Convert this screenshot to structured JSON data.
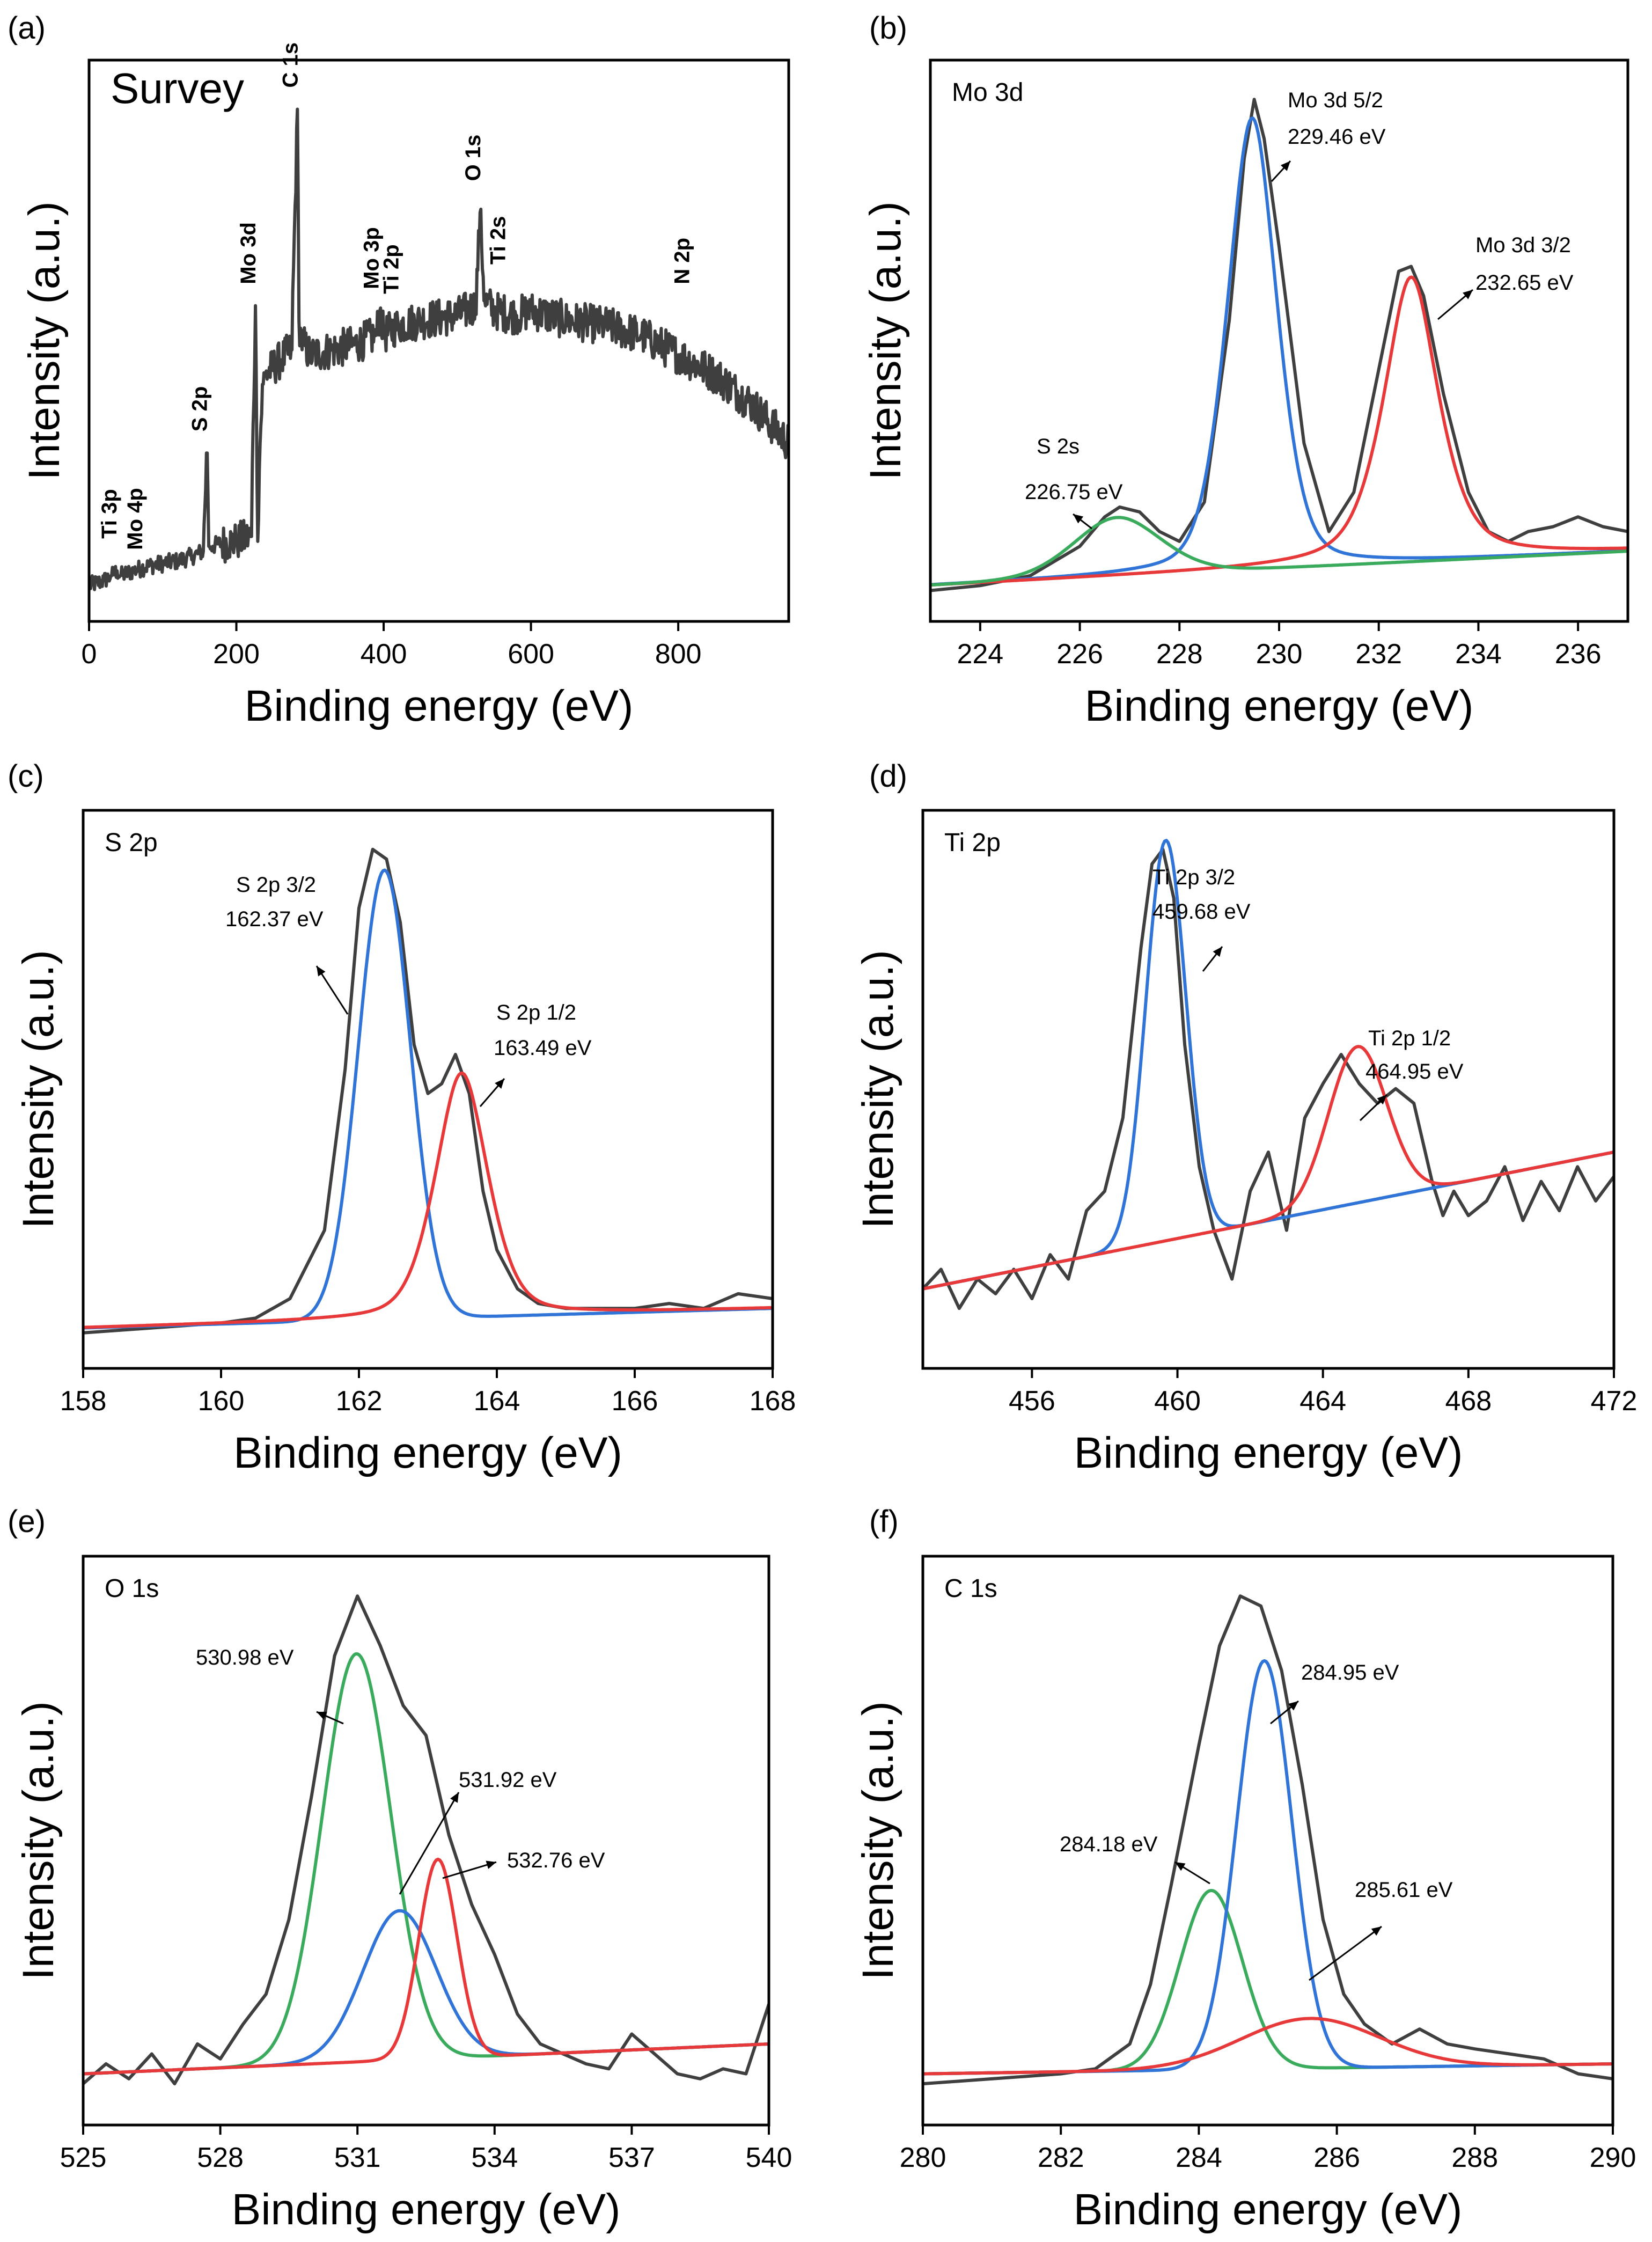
{
  "colors": {
    "total": "#3f3f3f",
    "red": "#e8393a",
    "blue": "#2f74d6",
    "green": "#3aab5c",
    "axis": "#000000"
  },
  "chart_data": [
    {
      "panel": "(a)",
      "type": "line",
      "title": "Survey",
      "xlabel": "Binding energy (eV)",
      "ylabel": "Intensity (a.u.)",
      "xlim": [
        0,
        950
      ],
      "ylim": [
        0,
        100
      ],
      "xticks": [
        0,
        200,
        400,
        600,
        800
      ],
      "xtick_labels": [
        "0",
        "200",
        "400",
        "600",
        "800"
      ],
      "series": [
        {
          "name": "total",
          "color": "#3f3f3f",
          "noise": 1.8,
          "x": [
            0,
            20,
            30,
            38,
            42,
            60,
            80,
            100,
            120,
            140,
            155,
            160,
            163,
            168,
            175,
            200,
            220,
            226,
            229,
            232,
            236,
            240,
            260,
            275,
            283,
            285,
            288,
            300,
            330,
            360,
            390,
            395,
            400,
            420,
            450,
            500,
            525,
            531,
            537,
            550,
            580,
            600,
            650,
            700,
            750,
            800,
            850,
            900,
            950
          ],
          "y": [
            1,
            2,
            3,
            4,
            3,
            4,
            5,
            5.5,
            6,
            7,
            8,
            28,
            9,
            9,
            9.5,
            10,
            11,
            58,
            10,
            30,
            42,
            44,
            47,
            49,
            98,
            55,
            51,
            48,
            49,
            50,
            52,
            57,
            52,
            54,
            55,
            56,
            58,
            77,
            59,
            57,
            56,
            57,
            55,
            54,
            52,
            48,
            44,
            38,
            30
          ]
        }
      ],
      "annotations": [
        {
          "text": "Ti 3p",
          "x": 37,
          "y": 4
        },
        {
          "text": "Mo 4p",
          "x": 64,
          "y": 5
        },
        {
          "text": "S 2p",
          "x": 160,
          "y": 28
        },
        {
          "text": "Mo 3d",
          "x": 226,
          "y": 58
        },
        {
          "text": "C 1s",
          "x": 283,
          "y": 98
        },
        {
          "text": "Mo 3p",
          "x": 393,
          "y": 57
        },
        {
          "text": "Ti 2p",
          "x": 420,
          "y": 56
        },
        {
          "text": "O 1s",
          "x": 531,
          "y": 79
        },
        {
          "text": "Ti 2s",
          "x": 565,
          "y": 62
        },
        {
          "text": "N 2p",
          "x": 815,
          "y": 58
        }
      ]
    },
    {
      "panel": "(b)",
      "type": "line",
      "title": "Mo 3d",
      "xlabel": "Binding energy (eV)",
      "ylabel": "Intensity (a.u.)",
      "xlim": [
        223,
        237
      ],
      "ylim": [
        0,
        100
      ],
      "xticks": [
        224,
        226,
        228,
        230,
        232,
        234,
        236
      ],
      "xtick_labels": [
        "224",
        "226",
        "228",
        "230",
        "232",
        "234",
        "236"
      ],
      "series": [
        {
          "name": "total",
          "color": "#3f3f3f",
          "noise": 0,
          "x": [
            223,
            224,
            225,
            225.5,
            226,
            226.5,
            226.8,
            227.2,
            227.6,
            228,
            228.5,
            229,
            229.3,
            229.5,
            229.7,
            230,
            230.5,
            231,
            231.5,
            232,
            232.4,
            232.65,
            232.9,
            233.3,
            233.8,
            234.2,
            234.6,
            235,
            235.5,
            236,
            236.5,
            237
          ],
          "y": [
            0,
            1,
            3,
            6,
            9,
            15,
            17,
            16,
            12,
            10,
            18,
            55,
            88,
            100,
            92,
            70,
            30,
            12,
            20,
            45,
            65,
            66,
            60,
            40,
            20,
            12,
            10,
            12,
            13,
            15,
            13,
            12
          ]
        },
        {
          "name": "Mo 3d 5/2",
          "color": "#2f74d6",
          "fn": "voigt",
          "center": 229.46,
          "amp": 92,
          "width": 0.52,
          "eta": 0.35,
          "bl": [
            1,
            8
          ]
        },
        {
          "name": "Mo 3d 3/2",
          "color": "#e8393a",
          "fn": "voigt",
          "center": 232.65,
          "amp": 58,
          "width": 0.6,
          "eta": 0.6,
          "bl": [
            1,
            8
          ]
        },
        {
          "name": "S 2s",
          "color": "#3aab5c",
          "fn": "voigt",
          "center": 226.75,
          "amp": 12,
          "width": 0.9,
          "eta": 0.2,
          "bl": [
            1,
            8
          ]
        }
      ],
      "annotations": [
        {
          "text": "Mo 3d 5/2",
          "text2": "229.46 eV",
          "x": 229.46,
          "y": 100
        },
        {
          "text": "Mo 3d 3/2",
          "text2": "232.65 eV",
          "x": 232.65,
          "y": 66
        },
        {
          "text": "S 2s",
          "text2": "226.75 eV",
          "x": 226.75,
          "y": 17
        }
      ]
    },
    {
      "panel": "(c)",
      "type": "line",
      "title": "S 2p",
      "xlabel": "Binding energy (eV)",
      "ylabel": "Intensity (a.u.)",
      "xlim": [
        158,
        168
      ],
      "ylim": [
        0,
        100
      ],
      "xticks": [
        158,
        160,
        162,
        164,
        166,
        168
      ],
      "xtick_labels": [
        "158",
        "160",
        "162",
        "164",
        "166",
        "168"
      ],
      "series": [
        {
          "name": "total",
          "color": "#3f3f3f",
          "noise": 0,
          "x": [
            158,
            159,
            160,
            160.5,
            161,
            161.5,
            161.8,
            162,
            162.2,
            162.4,
            162.6,
            162.8,
            163,
            163.2,
            163.4,
            163.6,
            163.8,
            164,
            164.3,
            164.6,
            165,
            165.5,
            166,
            166.5,
            167,
            167.5,
            168
          ],
          "y": [
            1,
            2,
            3,
            4,
            8,
            22,
            55,
            88,
            100,
            98,
            85,
            60,
            50,
            52,
            58,
            50,
            30,
            18,
            10,
            7,
            6,
            6,
            6,
            7,
            6,
            9,
            8
          ]
        },
        {
          "name": "S 2p 3/2",
          "color": "#2f74d6",
          "fn": "gauss",
          "center": 162.37,
          "amp": 92,
          "width": 0.38,
          "bl": [
            2,
            6
          ]
        },
        {
          "name": "S 2p 1/2",
          "color": "#e8393a",
          "fn": "voigt",
          "center": 163.49,
          "amp": 50,
          "width": 0.4,
          "eta": 0.4,
          "bl": [
            2,
            6
          ]
        }
      ],
      "annotations": [
        {
          "text": "S 2p 3/2",
          "text2": "162.37 eV",
          "x": 162.37,
          "y": 100
        },
        {
          "text": "S 2p 1/2",
          "text2": "163.49 eV",
          "x": 163.49,
          "y": 58
        }
      ]
    },
    {
      "panel": "(d)",
      "type": "line",
      "title": "Ti 2p",
      "xlabel": "Binding energy (eV)",
      "ylabel": "Intensity (a.u.)",
      "xlim": [
        453,
        472
      ],
      "ylim": [
        0,
        100
      ],
      "xticks": [
        456,
        460,
        464,
        468,
        472
      ],
      "xtick_labels": [
        "456",
        "460",
        "464",
        "468",
        "472"
      ],
      "series": [
        {
          "name": "total",
          "color": "#3f3f3f",
          "noise": 0,
          "x": [
            453,
            453.5,
            454,
            454.5,
            455,
            455.5,
            456,
            456.5,
            457,
            457.5,
            458,
            458.5,
            459,
            459.3,
            459.6,
            459.9,
            460.2,
            460.6,
            461,
            461.5,
            462,
            462.5,
            463,
            463.5,
            464,
            464.5,
            465,
            465.5,
            466,
            466.5,
            467,
            467.3,
            467.6,
            468,
            468.5,
            469,
            469.5,
            470,
            470.5,
            471,
            471.5,
            472
          ],
          "y": [
            10,
            14,
            6,
            12,
            9,
            14,
            8,
            17,
            12,
            26,
            30,
            45,
            80,
            97,
            100,
            90,
            60,
            35,
            22,
            12,
            30,
            38,
            22,
            45,
            52,
            58,
            52,
            48,
            51,
            48,
            32,
            25,
            30,
            25,
            28,
            35,
            24,
            32,
            26,
            35,
            28,
            33
          ]
        },
        {
          "name": "Ti 2p 3/2",
          "color": "#2f74d6",
          "fn": "gauss",
          "center": 459.68,
          "amp": 82,
          "width": 0.55,
          "bl": [
            10,
            38
          ]
        },
        {
          "name": "Ti 2p 1/2",
          "color": "#e8393a",
          "fn": "gauss",
          "center": 464.95,
          "amp": 32,
          "width": 0.8,
          "bl": [
            10,
            38
          ]
        }
      ],
      "annotations": [
        {
          "text": "Ti 2p 3/2",
          "text2": "459.68 eV",
          "x": 459.68,
          "y": 100
        },
        {
          "text": "Ti 2p 1/2",
          "text2": "464.95 eV",
          "x": 464.95,
          "y": 55
        }
      ]
    },
    {
      "panel": "(e)",
      "type": "line",
      "title": "O 1s",
      "xlabel": "Binding energy (eV)",
      "ylabel": "Intensity (a.u.)",
      "xlim": [
        525,
        540
      ],
      "ylim": [
        0,
        100
      ],
      "xticks": [
        525,
        528,
        531,
        534,
        537,
        540
      ],
      "xtick_labels": [
        "525",
        "528",
        "531",
        "534",
        "537",
        "540"
      ],
      "series": [
        {
          "name": "total",
          "color": "#3f3f3f",
          "noise": 0,
          "x": [
            525,
            525.5,
            526,
            526.5,
            527,
            527.5,
            528,
            528.5,
            529,
            529.5,
            530,
            530.5,
            531,
            531.5,
            532,
            532.5,
            533,
            533.5,
            534,
            534.5,
            535,
            535.5,
            536,
            536.5,
            537,
            537.5,
            538,
            538.5,
            539,
            539.5,
            540
          ],
          "y": [
            2,
            6,
            3,
            8,
            2,
            10,
            7,
            14,
            20,
            35,
            60,
            88,
            100,
            90,
            78,
            72,
            52,
            38,
            28,
            16,
            10,
            8,
            6,
            5,
            12,
            8,
            4,
            3,
            5,
            4,
            18
          ]
        },
        {
          "name": "530.98 eV",
          "color": "#3aab5c",
          "fn": "gauss",
          "center": 530.98,
          "amp": 82,
          "width": 0.75,
          "bl": [
            4,
            10
          ]
        },
        {
          "name": "531.92 eV",
          "color": "#2f74d6",
          "fn": "gauss",
          "center": 531.92,
          "amp": 30,
          "width": 0.8,
          "bl": [
            4,
            10
          ]
        },
        {
          "name": "532.76 eV",
          "color": "#e8393a",
          "fn": "gauss",
          "center": 532.76,
          "amp": 40,
          "width": 0.42,
          "bl": [
            4,
            10
          ]
        }
      ],
      "annotations": [
        {
          "text": "530.98 eV",
          "x": 530.98,
          "y": 86
        },
        {
          "text": "531.92 eV",
          "x": 531.92,
          "y": 33
        },
        {
          "text": "532.76 eV",
          "x": 532.76,
          "y": 46
        }
      ]
    },
    {
      "panel": "(f)",
      "type": "line",
      "title": "C 1s",
      "xlabel": "Binding energy (eV)",
      "ylabel": "Intensity (a.u.)",
      "xlim": [
        280,
        290
      ],
      "ylim": [
        0,
        100
      ],
      "xticks": [
        280,
        282,
        284,
        286,
        288,
        290
      ],
      "xtick_labels": [
        "280",
        "282",
        "284",
        "286",
        "288",
        "290"
      ],
      "series": [
        {
          "name": "total",
          "color": "#3f3f3f",
          "noise": 0,
          "x": [
            280,
            281,
            282,
            282.5,
            283,
            283.3,
            283.6,
            284,
            284.3,
            284.6,
            284.9,
            285.2,
            285.5,
            285.8,
            286.1,
            286.4,
            286.8,
            287.2,
            287.6,
            288,
            288.5,
            289,
            289.5,
            290
          ],
          "y": [
            2,
            3,
            4,
            5,
            10,
            22,
            42,
            70,
            90,
            100,
            98,
            85,
            62,
            35,
            20,
            14,
            10,
            13,
            10,
            9,
            8,
            7,
            4,
            3
          ]
        },
        {
          "name": "284.18 eV",
          "color": "#3aab5c",
          "fn": "gauss",
          "center": 284.18,
          "amp": 36,
          "width": 0.45,
          "bl": [
            4,
            6
          ]
        },
        {
          "name": "284.95 eV",
          "color": "#2f74d6",
          "fn": "gauss",
          "center": 284.95,
          "amp": 82,
          "width": 0.4,
          "bl": [
            4,
            6
          ]
        },
        {
          "name": "285.61 eV",
          "color": "#e8393a",
          "fn": "gauss",
          "center": 285.61,
          "amp": 10,
          "width": 1.0,
          "bl": [
            4,
            6
          ]
        }
      ],
      "annotations": [
        {
          "text": "284.95 eV",
          "x": 284.95,
          "y": 86
        },
        {
          "text": "284.18 eV",
          "x": 284.18,
          "y": 40
        },
        {
          "text": "285.61 eV",
          "x": 285.61,
          "y": 18
        }
      ]
    }
  ]
}
